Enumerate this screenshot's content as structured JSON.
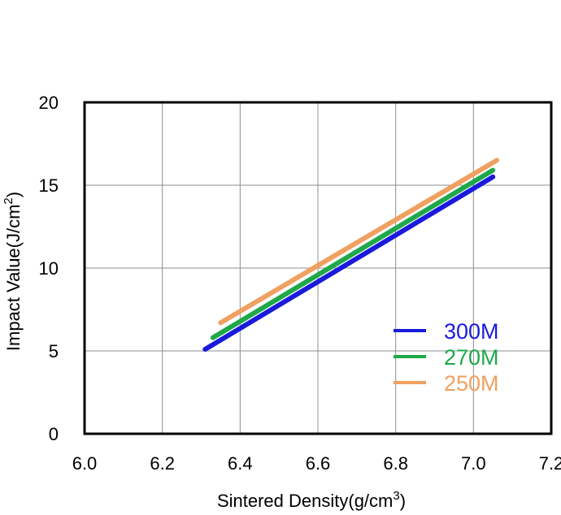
{
  "chart_data": {
    "type": "line",
    "title": "",
    "xlabel": "Sintered Density(g/cm",
    "xlabel_sup": "3",
    "xlabel_end": ")",
    "ylabel": "Impact Value(J/cm",
    "ylabel_sup": "2",
    "ylabel_end": ")",
    "xlim": [
      6.0,
      7.2
    ],
    "ylim": [
      0,
      20
    ],
    "xticks": [
      6.0,
      6.2,
      6.4,
      6.6,
      6.8,
      7.0,
      7.2
    ],
    "xtick_labels": [
      "6.0",
      "6.2",
      "6.4",
      "6.6",
      "6.8",
      "7.0",
      "7.2"
    ],
    "yticks": [
      0,
      5,
      10,
      15,
      20
    ],
    "ytick_labels": [
      "0",
      "5",
      "10",
      "15",
      "20"
    ],
    "grid": true,
    "legend_position": "bottom-right",
    "series": [
      {
        "name": "300M",
        "color": "#1a1adc",
        "x": [
          6.31,
          7.05
        ],
        "y": [
          5.1,
          15.5
        ]
      },
      {
        "name": "270M",
        "color": "#1fa84a",
        "x": [
          6.33,
          7.05
        ],
        "y": [
          5.8,
          15.9
        ]
      },
      {
        "name": "250M",
        "color": "#f0a060",
        "x": [
          6.35,
          7.06
        ],
        "y": [
          6.7,
          16.5
        ]
      }
    ]
  }
}
